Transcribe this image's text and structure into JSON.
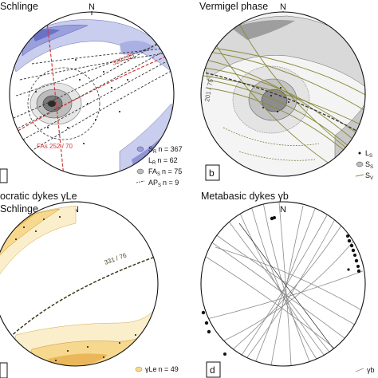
{
  "north_label": "N",
  "panels": [
    {
      "id": "a",
      "title": "Schlinge",
      "letter": "",
      "legend": [
        {
          "sym": "S",
          "sub": "R",
          "text": "n = 367"
        },
        {
          "sym": "L",
          "sub": "R",
          "text": "n = 62"
        },
        {
          "sym": "FA",
          "sub": "S",
          "text": "n = 75"
        },
        {
          "sym": "AP",
          "sub": "S",
          "text": "n = 9"
        }
      ],
      "plane_labels": [
        {
          "text": "329 / 85",
          "color": "#d23a3a"
        },
        {
          "text": "FAs 252 / 70",
          "color": "#d23a3a"
        }
      ]
    },
    {
      "id": "b",
      "title": "Vermigel phase",
      "letter": "b",
      "legend": [
        {
          "sym": "L",
          "sub": "S",
          "text": ""
        },
        {
          "sym": "S",
          "sub": "S",
          "text": ""
        },
        {
          "sym": "S",
          "sub": "V",
          "text": ""
        }
      ],
      "plane_labels": [
        {
          "text": "201 / 75",
          "color": "#555555"
        }
      ]
    },
    {
      "id": "c",
      "title": "ocratic dykes γLe",
      "title2": "Schlinge",
      "letter": "",
      "legend": [
        {
          "sym": "γLe",
          "sub": "",
          "text": "n = 49"
        }
      ],
      "plane_labels": [
        {
          "text": "331 / 76",
          "color": "#4a4420"
        }
      ]
    },
    {
      "id": "d",
      "title": "Metabasic dykes γb",
      "letter": "d",
      "legend": [
        {
          "sym": "γb",
          "sub": "",
          "text": ""
        }
      ],
      "plane_labels": []
    }
  ]
}
